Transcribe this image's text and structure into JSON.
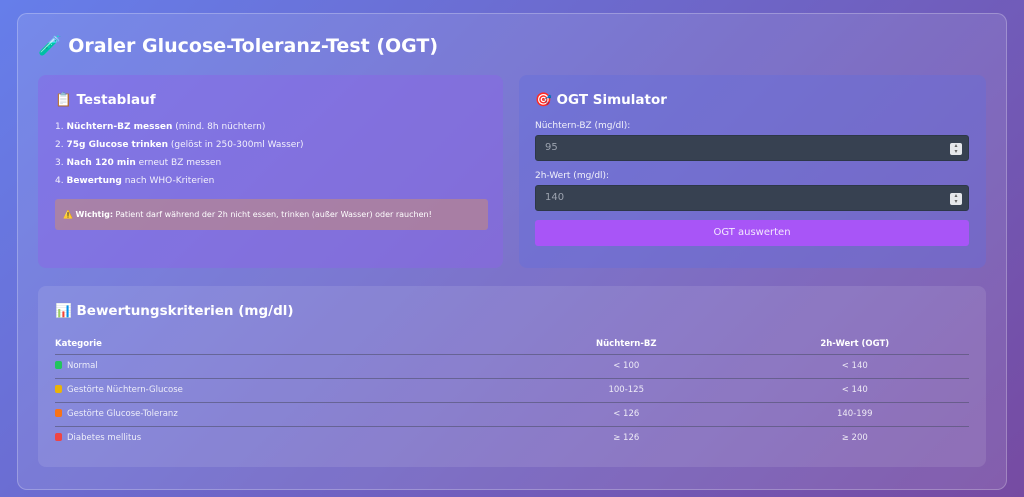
{
  "title": "🧪 Oraler Glucose-Toleranz-Test (OGT)",
  "testablauf": {
    "title": "📋 Testablauf",
    "steps": [
      {
        "num": "1.",
        "bold": "Nüchtern-BZ messen",
        "rest": " (mind. 8h nüchtern)"
      },
      {
        "num": "2.",
        "bold": "75g Glucose trinken",
        "rest": " (gelöst in 250-300ml Wasser)"
      },
      {
        "num": "3.",
        "bold": "Nach 120 min",
        "rest": " erneut BZ messen"
      },
      {
        "num": "4.",
        "bold": "Bewertung",
        "rest": " nach WHO-Kriterien"
      }
    ],
    "warning": {
      "icon": "⚠️",
      "bold": "Wichtig:",
      "text": " Patient darf während der 2h nicht essen, trinken (außer Wasser) oder rauchen!"
    }
  },
  "simulator": {
    "title": "🎯 OGT Simulator",
    "fasting_label": "Nüchtern-BZ (mg/dl):",
    "fasting_value": "95",
    "twohour_label": "2h-Wert (mg/dl):",
    "twohour_value": "140",
    "button": "OGT auswerten"
  },
  "criteria": {
    "title": "📊 Bewertungskriterien (mg/dl)",
    "headers": [
      "Kategorie",
      "Nüchtern-BZ",
      "2h-Wert (OGT)"
    ],
    "rows": [
      {
        "color": "#22c55e",
        "category": "Normal",
        "fasting": "< 100",
        "twohour": "< 140"
      },
      {
        "color": "#eab308",
        "category": "Gestörte Nüchtern-Glucose",
        "fasting": "100-125",
        "twohour": "< 140"
      },
      {
        "color": "#f97316",
        "category": "Gestörte Glucose-Toleranz",
        "fasting": "< 126",
        "twohour": "140-199"
      },
      {
        "color": "#ef4444",
        "category": "Diabetes mellitus",
        "fasting": "≥ 126",
        "twohour": "≥ 200"
      }
    ]
  }
}
